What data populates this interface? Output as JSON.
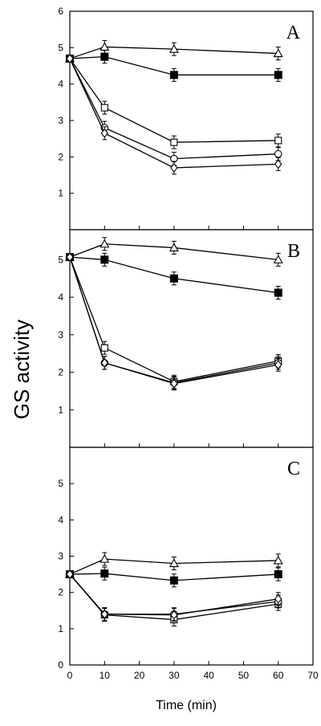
{
  "figure": {
    "ylabel": "GS activity",
    "xlabel": "Time (min)",
    "x_ticks": [
      0,
      10,
      20,
      30,
      40,
      50,
      60,
      70
    ]
  },
  "chart_data": [
    {
      "type": "line",
      "panel_label": "A",
      "x": [
        0,
        10,
        30,
        60
      ],
      "xlim": [
        0,
        70
      ],
      "ylim": [
        0,
        6
      ],
      "y_ticks": [
        1,
        2,
        3,
        4,
        5,
        6
      ],
      "grid": false,
      "series": [
        {
          "marker": "triangle-open",
          "values": [
            4.7,
            5.02,
            4.96,
            4.84
          ]
        },
        {
          "marker": "square-filled",
          "values": [
            4.7,
            4.75,
            4.25,
            4.25
          ]
        },
        {
          "marker": "square-open",
          "values": [
            4.7,
            3.35,
            2.4,
            2.45
          ]
        },
        {
          "marker": "circle-open",
          "values": [
            4.7,
            2.8,
            1.95,
            2.08
          ]
        },
        {
          "marker": "diamond-open",
          "values": [
            4.7,
            2.65,
            1.7,
            1.8
          ]
        }
      ]
    },
    {
      "type": "line",
      "panel_label": "B",
      "x": [
        0,
        10,
        30,
        60
      ],
      "xlim": [
        0,
        70
      ],
      "ylim": [
        0,
        5.8
      ],
      "y_ticks": [
        1,
        2,
        3,
        4,
        5
      ],
      "grid": false,
      "series": [
        {
          "marker": "triangle-open",
          "values": [
            5.07,
            5.42,
            5.32,
            5.0
          ]
        },
        {
          "marker": "square-filled",
          "values": [
            5.07,
            5.0,
            4.5,
            4.12
          ]
        },
        {
          "marker": "square-open",
          "values": [
            5.07,
            2.65,
            1.75,
            2.3
          ]
        },
        {
          "marker": "circle-open",
          "values": [
            5.07,
            2.25,
            1.72,
            2.25
          ]
        },
        {
          "marker": "diamond-open",
          "values": [
            5.07,
            2.25,
            1.7,
            2.2
          ]
        }
      ]
    },
    {
      "type": "line",
      "panel_label": "C",
      "x": [
        0,
        10,
        30,
        60
      ],
      "xlim": [
        0,
        70
      ],
      "ylim": [
        0,
        6
      ],
      "y_ticks": [
        0,
        1,
        2,
        3,
        4,
        5
      ],
      "grid": false,
      "series": [
        {
          "marker": "triangle-open",
          "values": [
            2.5,
            2.92,
            2.8,
            2.88
          ]
        },
        {
          "marker": "square-filled",
          "values": [
            2.5,
            2.52,
            2.33,
            2.5
          ]
        },
        {
          "marker": "square-open",
          "values": [
            2.5,
            1.38,
            1.25,
            1.68
          ]
        },
        {
          "marker": "circle-open",
          "values": [
            2.5,
            1.4,
            1.4,
            1.75
          ]
        },
        {
          "marker": "diamond-open",
          "values": [
            2.5,
            1.4,
            1.38,
            1.82
          ]
        }
      ]
    }
  ]
}
